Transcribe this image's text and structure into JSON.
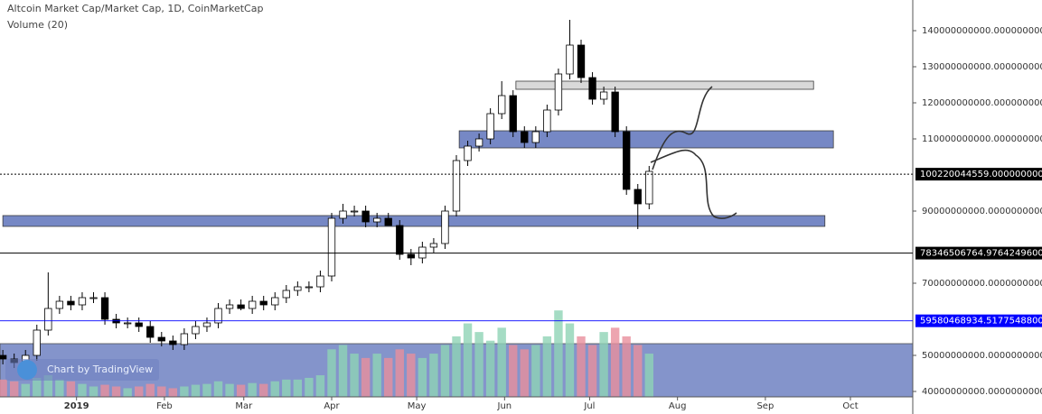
{
  "chart_data": {
    "type": "candlestick",
    "title": "Altcoin Market Cap/Market Cap, 1D, CoinMarketCap",
    "subtitle": "Volume (20)",
    "watermark": "Chart by TradingView",
    "x": [
      -26,
      -22,
      -18,
      -14,
      -10,
      -6,
      -2,
      2,
      6,
      10,
      14,
      18,
      22,
      26,
      30,
      34,
      38,
      42,
      46,
      50,
      54,
      58,
      62,
      66,
      70,
      74,
      78,
      82,
      86,
      90,
      94,
      98,
      102,
      106,
      110,
      114,
      118,
      122,
      126,
      130,
      134,
      138,
      142,
      146,
      150,
      154,
      158,
      162,
      166,
      170,
      174,
      178,
      182,
      186,
      190,
      194,
      198,
      202
    ],
    "open": [
      50000000000.0,
      49000000000.0,
      48000000000.0,
      50000000000.0,
      57000000000.0,
      63000000000.0,
      65000000000.0,
      64000000000.0,
      66000000000.0,
      66000000000.0,
      60000000000.0,
      59000000000.0,
      59000000000.0,
      58000000000.0,
      55000000000.0,
      54000000000.0,
      53000000000.0,
      56000000000.0,
      58000000000.0,
      59000000000.0,
      63000000000.0,
      64000000000.0,
      63000000000.0,
      65000000000.0,
      64000000000.0,
      66000000000.0,
      68000000000.0,
      69000000000.0,
      69000000000.0,
      72000000000.0,
      88000000000.0,
      90000000000.0,
      90000000000.0,
      87000000000.0,
      88000000000.0,
      86000000000.0,
      78000000000.0,
      77000000000.0,
      80000000000.0,
      81000000000.0,
      90000000000.0,
      104000000000.0,
      108000000000.0,
      110000000000.0,
      117000000000.0,
      122000000000.0,
      112000000000.0,
      109000000000.0,
      112000000000.0,
      118000000000.0,
      128000000000.0,
      136000000000.0,
      127000000000.0,
      121000000000.0,
      123000000000.0,
      112000000000.0,
      96000000000.0,
      92000000000.0
    ],
    "high": [
      51500000000.0,
      50500000000.0,
      51500000000.0,
      58500000000.0,
      73000000000.0,
      66500000000.0,
      66500000000.0,
      67500000000.0,
      67500000000.0,
      67500000000.0,
      61500000000.0,
      60500000000.0,
      60500000000.0,
      59500000000.0,
      56500000000.0,
      55500000000.0,
      57500000000.0,
      59500000000.0,
      60500000000.0,
      64500000000.0,
      65500000000.0,
      65500000000.0,
      66500000000.0,
      66500000000.0,
      67500000000.0,
      69500000000.0,
      70500000000.0,
      70500000000.0,
      73500000000.0,
      89500000000.0,
      92000000000.0,
      91500000000.0,
      91500000000.0,
      89500000000.0,
      89500000000.0,
      87500000000.0,
      79500000000.0,
      81500000000.0,
      82500000000.0,
      91500000000.0,
      105500000000.0,
      109500000000.0,
      111500000000.0,
      118500000000.0,
      126000000000.0,
      123500000000.0,
      113500000000.0,
      113500000000.0,
      119500000000.0,
      129500000000.0,
      143000000000.0,
      137500000000.0,
      128500000000.0,
      124500000000.0,
      124500000000.0,
      113500000000.0,
      97500000000.0,
      102500000000.0
    ],
    "low": [
      47500000000.0,
      46500000000.0,
      46500000000.0,
      48500000000.0,
      55500000000.0,
      61500000000.0,
      62500000000.0,
      62500000000.0,
      64500000000.0,
      58500000000.0,
      57500000000.0,
      57500000000.0,
      56500000000.0,
      53500000000.0,
      52500000000.0,
      51500000000.0,
      51500000000.0,
      54500000000.0,
      56500000000.0,
      57500000000.0,
      61500000000.0,
      62500000000.0,
      61500000000.0,
      62500000000.0,
      62500000000.0,
      64500000000.0,
      66500000000.0,
      67500000000.0,
      67500000000.0,
      70500000000.0,
      86500000000.0,
      88500000000.0,
      85500000000.0,
      85500000000.0,
      86500000000.0,
      76500000000.0,
      75000000000.0,
      75500000000.0,
      78500000000.0,
      79500000000.0,
      88500000000.0,
      102500000000.0,
      106500000000.0,
      108500000000.0,
      115500000000.0,
      110500000000.0,
      107500000000.0,
      107500000000.0,
      110500000000.0,
      116500000000.0,
      126500000000.0,
      125500000000.0,
      119500000000.0,
      119500000000.0,
      110500000000.0,
      94500000000.0,
      85000000000.0,
      90500000000.0
    ],
    "close": [
      49000000000.0,
      48000000000.0,
      50000000000.0,
      57000000000.0,
      63000000000.0,
      65000000000.0,
      64000000000.0,
      66000000000.0,
      66000000000.0,
      60000000000.0,
      59000000000.0,
      59000000000.0,
      58000000000.0,
      55000000000.0,
      54000000000.0,
      53000000000.0,
      56000000000.0,
      58000000000.0,
      59000000000.0,
      63000000000.0,
      64000000000.0,
      63000000000.0,
      65000000000.0,
      64000000000.0,
      66000000000.0,
      68000000000.0,
      69000000000.0,
      69000000000.0,
      72000000000.0,
      88000000000.0,
      90000000000.0,
      90000000000.0,
      87000000000.0,
      88000000000.0,
      86000000000.0,
      78000000000.0,
      77000000000.0,
      80000000000.0,
      81000000000.0,
      90000000000.0,
      104000000000.0,
      108000000000.0,
      110000000000.0,
      117000000000.0,
      122000000000.0,
      112000000000.0,
      109000000000.0,
      112000000000.0,
      118000000000.0,
      128000000000.0,
      136000000000.0,
      127000000000.0,
      121000000000.0,
      123000000000.0,
      112000000000.0,
      96000000000.0,
      92000000000.0,
      101000000000.0
    ],
    "volume": [
      20,
      18,
      15,
      22,
      25,
      20,
      18,
      15,
      12,
      14,
      12,
      10,
      12,
      15,
      12,
      10,
      12,
      14,
      15,
      18,
      15,
      14,
      16,
      15,
      18,
      20,
      20,
      22,
      25,
      55,
      60,
      50,
      45,
      50,
      45,
      55,
      50,
      45,
      50,
      60,
      70,
      85,
      75,
      65,
      80,
      60,
      55,
      60,
      70,
      100,
      85,
      70,
      60,
      75,
      80,
      70,
      60,
      50
    ],
    "volume_lim": [
      0,
      120
    ],
    "xlim": [
      -27,
      295
    ],
    "xticks": [
      {
        "value": 0,
        "label": "2019"
      },
      {
        "value": 31,
        "label": "Feb"
      },
      {
        "value": 59,
        "label": "Mar"
      },
      {
        "value": 90,
        "label": "Apr"
      },
      {
        "value": 120,
        "label": "May"
      },
      {
        "value": 151,
        "label": "Jun"
      },
      {
        "value": 181,
        "label": "Jul"
      },
      {
        "value": 212,
        "label": "Aug"
      },
      {
        "value": 243,
        "label": "Sep"
      },
      {
        "value": 273,
        "label": "Oct"
      }
    ],
    "ylim": [
      33750000000,
      148500000000
    ],
    "yticks": [
      {
        "value": 140000000000,
        "label": "140000000000.0000000000"
      },
      {
        "value": 130000000000,
        "label": "130000000000.0000000000"
      },
      {
        "value": 120000000000,
        "label": "120000000000.0000000000"
      },
      {
        "value": 110000000000,
        "label": "110000000000.0000000000"
      },
      {
        "value": 90000000000,
        "label": "90000000000.0000000000"
      },
      {
        "value": 70000000000,
        "label": "70000000000.0000000000"
      },
      {
        "value": 50000000000,
        "label": "50000000000.0000000000"
      },
      {
        "value": 40000000000,
        "label": "40000000000.0000000000"
      }
    ],
    "hlines": [
      {
        "value": 100220044559,
        "label": "100220044559.0000000000",
        "color": "#000000",
        "dashed": true
      },
      {
        "value": 78346506764.97643,
        "label": "78346506764.9764249600",
        "color": "#000000",
        "dashed": false
      },
      {
        "value": 59580468934.51775,
        "label": "59580468934.5177548800",
        "color": "#0000ff",
        "dashed": false
      }
    ],
    "zones": [
      {
        "from": 123750000000.0,
        "to": 126000000000.0,
        "x_from": 155,
        "x_to": 260,
        "color": "#d8d8d8"
      },
      {
        "from": 107500000000.0,
        "to": 112250000000.0,
        "x_from": 135,
        "x_to": 267,
        "color": "#6f82c2"
      },
      {
        "from": 85750000000.0,
        "to": 88750000000.0,
        "x_from": -26,
        "x_to": 264,
        "color": "#6f82c2"
      },
      {
        "from": 33750000000.0,
        "to": 53250000000.0,
        "x_from": -27,
        "x_to": 295,
        "color": "#6f82c2"
      }
    ],
    "up_color": "#ffffff",
    "down_color": "#000000",
    "volume_up_color": "#8fd3b5",
    "volume_down_color": "#e88f9c"
  }
}
